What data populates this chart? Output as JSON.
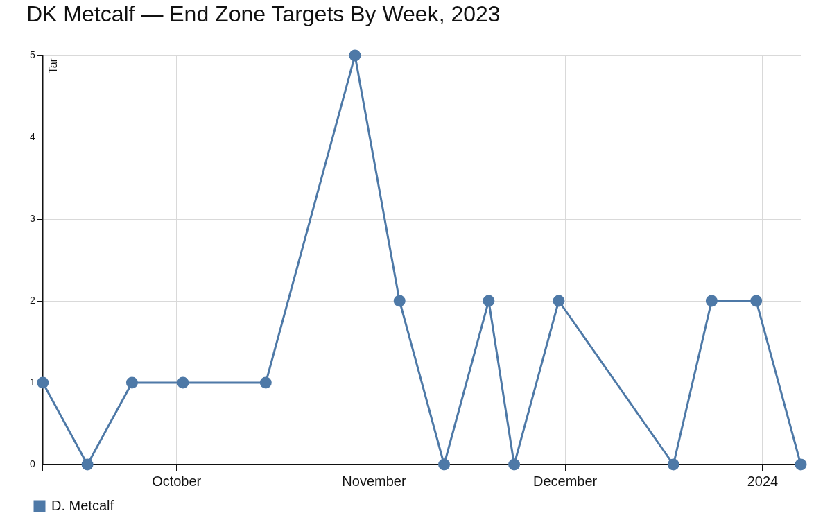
{
  "chart_data": {
    "type": "line",
    "title": "DK Metcalf — End Zone Targets By Week, 2023",
    "ylabel": "Tar",
    "x": [
      "2023-09-10",
      "2023-09-17",
      "2023-09-24",
      "2023-10-02",
      "2023-10-15",
      "2023-10-29",
      "2023-11-05",
      "2023-11-12",
      "2023-11-19",
      "2023-11-23",
      "2023-11-30",
      "2023-12-18",
      "2023-12-24",
      "2023-12-31",
      "2024-01-07"
    ],
    "series": [
      {
        "name": "D. Metcalf",
        "color": "#4e79a7",
        "values": [
          1,
          0,
          1,
          1,
          1,
          5,
          2,
          0,
          2,
          0,
          2,
          0,
          2,
          2,
          0
        ]
      }
    ],
    "xlim": [
      "2023-09-10",
      "2024-01-07"
    ],
    "xticks": [
      {
        "value": "2023-10-01",
        "label": "October"
      },
      {
        "value": "2023-11-01",
        "label": "November"
      },
      {
        "value": "2023-12-01",
        "label": "December"
      },
      {
        "value": "2024-01-01",
        "label": "2024"
      }
    ],
    "ylim": [
      0,
      5
    ],
    "yticks": [
      0,
      1,
      2,
      3,
      4,
      5
    ],
    "grid": true,
    "legend": "bottom left",
    "marker": "circle",
    "line_style": "solid"
  }
}
